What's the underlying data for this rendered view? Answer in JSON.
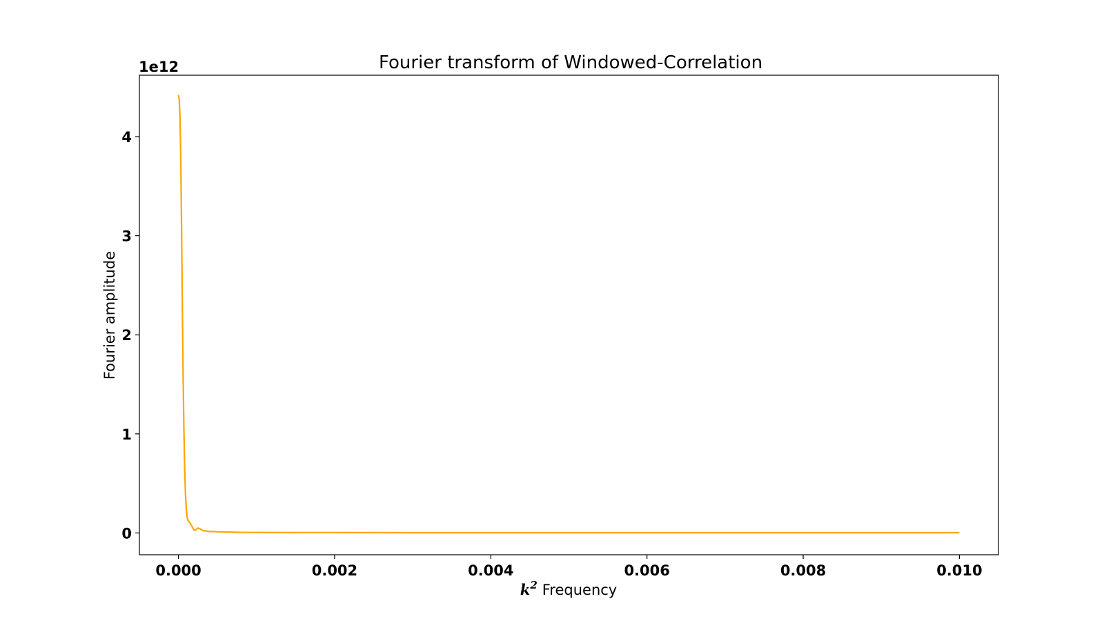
{
  "chart_data": {
    "type": "line",
    "title": "Fourier transform of Windowed-Correlation",
    "xlabel_symbol": "k",
    "xlabel_exponent": "2",
    "xlabel_text": "Frequency",
    "ylabel": "Fourier amplitude",
    "y_offset_text": "1e12",
    "y_scale_factor": 1000000000000.0,
    "xlim": [
      -0.0005,
      0.0105
    ],
    "ylim": [
      -0.22,
      4.62
    ],
    "x_ticks": [
      {
        "value": 0.0,
        "label": "0.000"
      },
      {
        "value": 0.002,
        "label": "0.002"
      },
      {
        "value": 0.004,
        "label": "0.004"
      },
      {
        "value": 0.006,
        "label": "0.006"
      },
      {
        "value": 0.008,
        "label": "0.008"
      },
      {
        "value": 0.01,
        "label": "0.010"
      }
    ],
    "y_ticks": [
      {
        "value": 0,
        "label": "0"
      },
      {
        "value": 1,
        "label": "1"
      },
      {
        "value": 2,
        "label": "2"
      },
      {
        "value": 3,
        "label": "3"
      },
      {
        "value": 4,
        "label": "4"
      }
    ],
    "grid": false,
    "legend": "none",
    "series": [
      {
        "color": "#ffa500",
        "x": [
          0.0,
          1e-05,
          2e-05,
          3e-05,
          4e-05,
          5e-05,
          6e-05,
          7e-05,
          8e-05,
          9e-05,
          0.0001,
          0.00011,
          0.00012,
          0.00013,
          0.00014,
          0.00015,
          0.00017,
          0.0002,
          0.00022,
          0.00025,
          0.00028,
          0.0003,
          0.00033,
          0.00035,
          0.0004,
          0.00045,
          0.0005,
          0.0006,
          0.0007,
          0.0008,
          0.001,
          0.0015,
          0.002,
          0.003,
          0.004,
          0.005,
          0.006,
          0.007,
          0.008,
          0.009,
          0.01
        ],
        "y": [
          4.42,
          4.38,
          4.2,
          3.8,
          3.1,
          2.3,
          1.6,
          1.05,
          0.65,
          0.4,
          0.25,
          0.17,
          0.13,
          0.12,
          0.11,
          0.1,
          0.07,
          0.03,
          0.03,
          0.05,
          0.04,
          0.03,
          0.02,
          0.02,
          0.015,
          0.015,
          0.012,
          0.01,
          0.008,
          0.006,
          0.005,
          0.004,
          0.004,
          0.003,
          0.003,
          0.003,
          0.003,
          0.003,
          0.003,
          0.003,
          0.003
        ]
      }
    ]
  }
}
